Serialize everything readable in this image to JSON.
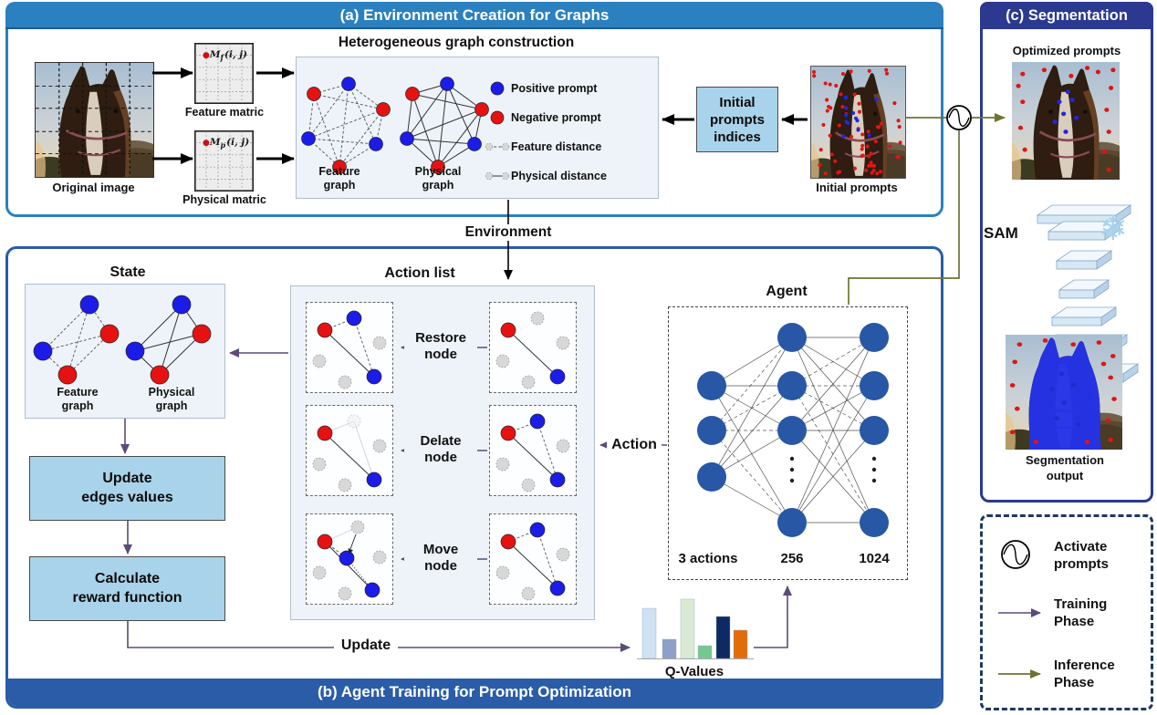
{
  "colors": {
    "banner_a": "#2b80bf",
    "banner_b": "#2a5ca8",
    "panel_c": "#2b3990",
    "legend_border": "#1f3864",
    "training_arrow": "#5b4a7a",
    "inference_arrow": "#6e7334",
    "positive_node": "#1c1ce8",
    "negative_node": "#e61212",
    "agent_node": "#2757a5",
    "box_fill": "#a9d3ea",
    "panel_fill": "#edf3f9"
  },
  "panel_a": {
    "title": "(a) Environment Creation for Graphs",
    "hetero_title": "Heterogeneous graph construction",
    "original_image_caption": "Original image",
    "feature_matrix_caption": "Feature matric",
    "physical_matrix_caption": "Physical matric",
    "feature_matrix_formula": {
      "base": "M",
      "sub": "f",
      "rest": "(i, j)"
    },
    "physical_matrix_formula": {
      "base": "M",
      "sub": "p",
      "rest": "(i, j)"
    },
    "feature_graph_caption": "Feature\ngraph",
    "physical_graph_caption": "Physical\ngraph",
    "legend": [
      {
        "label": "Positive prompt"
      },
      {
        "label": "Negative prompt"
      },
      {
        "label": "Feature distance"
      },
      {
        "label": "Physical distance"
      }
    ],
    "indices_box_label": "Initial\nprompts\nindices",
    "initial_prompts_caption": "Initial prompts"
  },
  "environment_label": "Environment",
  "panel_b": {
    "title": "(b) Agent Training for Prompt Optimization",
    "state_title": "State",
    "state_feature_caption": "Feature\ngraph",
    "state_physical_caption": "Physical\ngraph",
    "update_box_label": "Update\nedges values",
    "calculate_box_label": "Calculate\nreward function",
    "action_list_title": "Action list",
    "action_labels": [
      "Restore\nnode",
      "Delate\nnode",
      "Move\nnode"
    ],
    "action_label": "Action",
    "update_label": "Update",
    "agent_title": "Agent",
    "agent_layer_labels": [
      "3 actions",
      "256",
      "1024"
    ],
    "qvalues_caption": "Q-Values"
  },
  "panel_c": {
    "title": "(c) Segmentation",
    "optimized_caption": "Optimized prompts",
    "sam_label": "SAM",
    "snowflake_icon": "❄",
    "segmentation_caption": "Segmentation\noutput"
  },
  "legend_box": {
    "activate_label": "Activate\nprompts",
    "training_label": "Training\nPhase",
    "inference_label": "Inference\nPhase"
  },
  "chart_data": {
    "type": "bar",
    "title": "Q-Values",
    "values": [
      0.85,
      0.32,
      1.0,
      0.22,
      0.71,
      0.48
    ],
    "colors": [
      "#cfe2f3",
      "#8e9fc9",
      "#d9ead3",
      "#76c893",
      "#0d2a63",
      "#e36c0a"
    ],
    "xlabel": "",
    "ylabel": "",
    "legend_position": "none",
    "grid": false
  }
}
